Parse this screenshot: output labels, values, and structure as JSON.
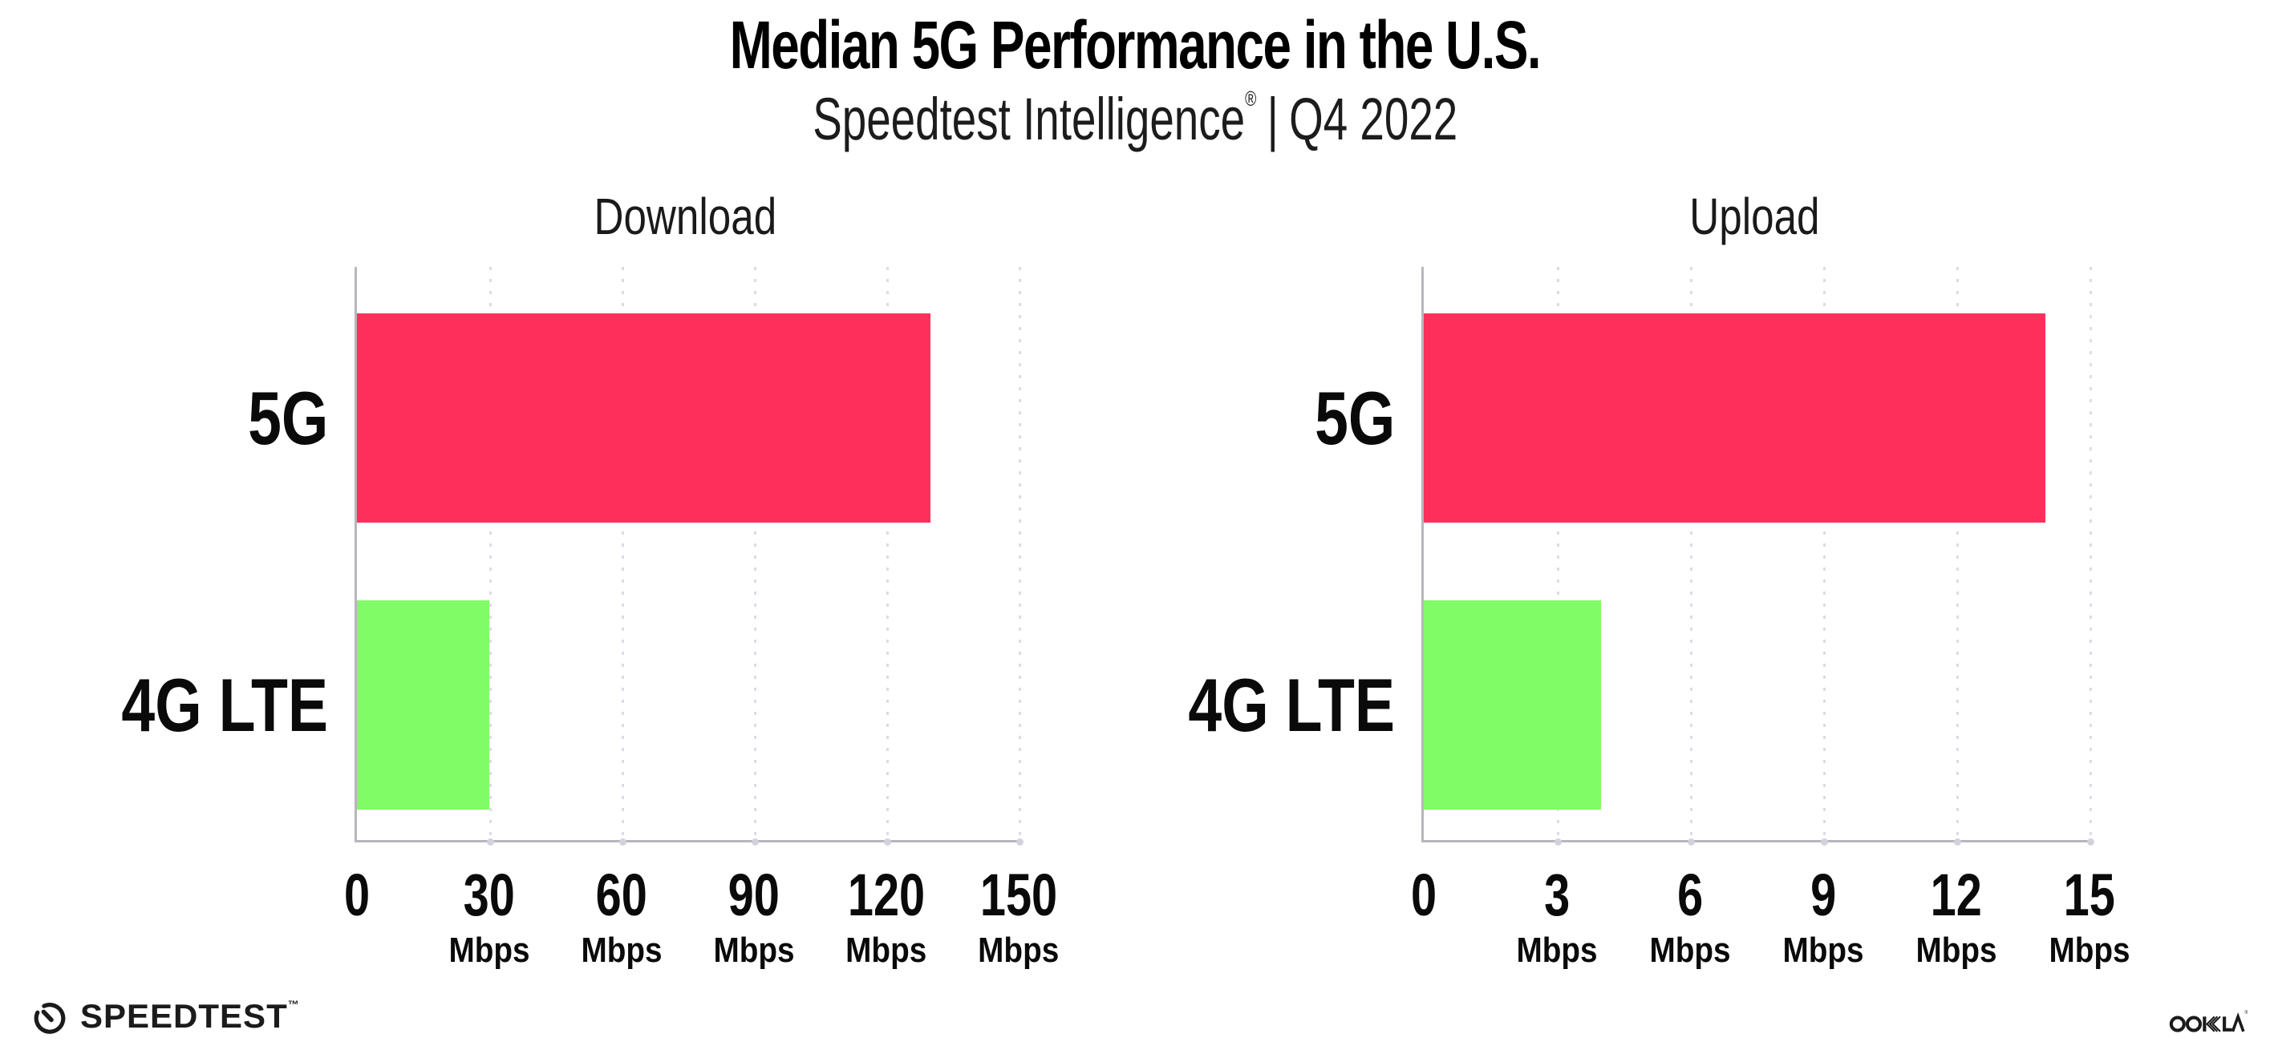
{
  "header": {
    "title": "Median 5G Performance in the U.S.",
    "subtitle_brand": "Speedtest Intelligence",
    "subtitle_registered": "®",
    "subtitle_separator": "|",
    "subtitle_period": "Q4 2022"
  },
  "chart_data": [
    {
      "type": "bar",
      "orientation": "horizontal",
      "title": "Download",
      "categories": [
        "5G",
        "4G LTE"
      ],
      "values": [
        130,
        30
      ],
      "value_unit": "Mbps",
      "xlim": [
        0,
        150
      ],
      "xticks": [
        0,
        30,
        60,
        90,
        120,
        150
      ],
      "tick_unit": "Mbps",
      "bar_colors": [
        "#ff2f5b",
        "#7ffc66"
      ],
      "grid": "dotted-vertical",
      "legend": "none"
    },
    {
      "type": "bar",
      "orientation": "horizontal",
      "title": "Upload",
      "categories": [
        "5G",
        "4G LTE"
      ],
      "values": [
        14,
        4
      ],
      "value_unit": "Mbps",
      "xlim": [
        0,
        15
      ],
      "xticks": [
        0,
        3,
        6,
        9,
        12,
        15
      ],
      "tick_unit": "Mbps",
      "bar_colors": [
        "#ff2f5b",
        "#7ffc66"
      ],
      "grid": "dotted-vertical",
      "legend": "none"
    }
  ],
  "footer": {
    "speedtest_logo_text": "SPEEDTEST",
    "speedtest_trademark": "™",
    "ookla_logo_text": "OOKLA",
    "ookla_registered": "®"
  },
  "colors": {
    "bar_5g": "#ff2f5b",
    "bar_4g_lte": "#7ffc66",
    "axis": "#b6b6be",
    "gridline": "#dcdce6",
    "grid_dot": "#d2d2dd",
    "text": "#111111"
  }
}
